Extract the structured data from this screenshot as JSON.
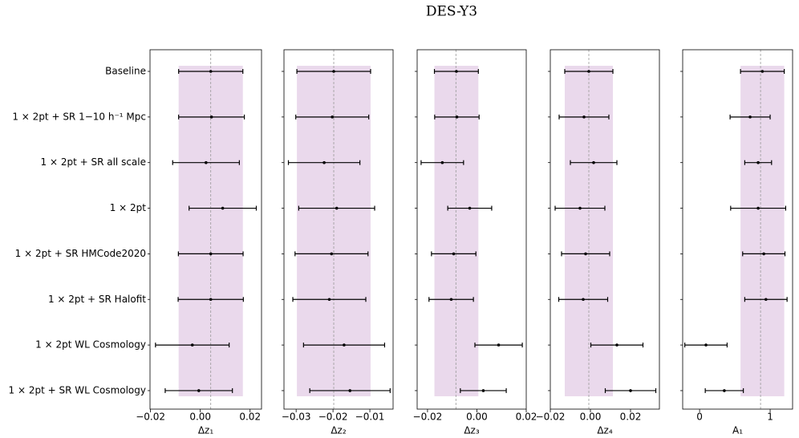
{
  "title": "DES-Y3",
  "chart_data": [
    {
      "type": "errorbar",
      "xlabel": "Δz₁",
      "categories": [
        "Baseline",
        "1 × 2pt + SR 1−10 h⁻¹ Mpc",
        "1 × 2pt + SR all scale",
        "1 × 2pt",
        "1 × 2pt + SR HMCode2020",
        "1 × 2pt + SR Halofit",
        "1 × 2pt WL Cosmology",
        "1 × 2pt + SR WL Cosmology"
      ],
      "values": [
        0.0042,
        0.0045,
        0.0023,
        0.009,
        0.0042,
        0.0042,
        -0.0032,
        -0.0006
      ],
      "errors": [
        0.0129,
        0.0132,
        0.0134,
        0.0135,
        0.013,
        0.0131,
        0.0148,
        0.0135
      ],
      "reference": 0.0042,
      "band": [
        -0.0087,
        0.0171
      ],
      "band_color": "#ead9ec",
      "color": "#000000",
      "xlim": [
        -0.0202,
        0.0246
      ],
      "xticks": [
        {
          "value": -0.02,
          "label": "−0.02"
        },
        {
          "value": 0,
          "label": "0.00"
        },
        {
          "value": 0.02,
          "label": "0.02"
        }
      ]
    },
    {
      "type": "errorbar",
      "xlabel": "Δz₂",
      "values": [
        -0.0198,
        -0.0202,
        -0.0224,
        -0.019,
        -0.0204,
        -0.021,
        -0.017,
        -0.0154
      ],
      "errors": [
        0.01,
        0.0099,
        0.0097,
        0.0103,
        0.0099,
        0.0099,
        0.011,
        0.0109
      ],
      "reference": -0.0198,
      "band": [
        -0.0298,
        -0.0098
      ],
      "band_color": "#ead9ec",
      "color": "#000000",
      "xlim": [
        -0.0333,
        -0.0037
      ],
      "xticks": [
        {
          "value": -0.03,
          "label": "−0.03"
        },
        {
          "value": -0.02,
          "label": "−0.02"
        },
        {
          "value": -0.01,
          "label": "−0.01"
        }
      ]
    },
    {
      "type": "errorbar",
      "xlabel": "Δz₃",
      "values": [
        -0.0083,
        -0.0081,
        -0.014,
        -0.0029,
        -0.0094,
        -0.0104,
        0.0088,
        0.0026
      ],
      "errors": [
        0.0089,
        0.009,
        0.0086,
        0.0089,
        0.009,
        0.009,
        0.0096,
        0.0093
      ],
      "reference": -0.0085,
      "band": [
        -0.0172,
        0.0006
      ],
      "band_color": "#ead9ec",
      "color": "#000000",
      "xlim": [
        -0.0242,
        0.02
      ],
      "xticks": [
        {
          "value": -0.02,
          "label": "−0.02"
        },
        {
          "value": 0,
          "label": "0.00"
        },
        {
          "value": 0.02,
          "label": "0.02"
        }
      ]
    },
    {
      "type": "errorbar",
      "xlabel": "Δz₄",
      "values": [
        -0.0008,
        -0.0032,
        0.0016,
        -0.0052,
        -0.0024,
        -0.0036,
        0.0132,
        0.02
      ],
      "errors": [
        0.012,
        0.0124,
        0.0116,
        0.0124,
        0.012,
        0.0122,
        0.013,
        0.0126
      ],
      "reference": -0.0008,
      "band": [
        -0.0128,
        0.0112
      ],
      "band_color": "#ead9ec",
      "color": "#000000",
      "xlim": [
        -0.02,
        0.0344
      ],
      "xticks": [
        {
          "value": -0.02,
          "label": "−0.02"
        },
        {
          "value": 0,
          "label": "0.00"
        },
        {
          "value": 0.02,
          "label": "0.02"
        }
      ]
    },
    {
      "type": "errorbar",
      "xlabel": "A₁",
      "values": [
        0.89,
        0.716,
        0.83,
        0.83,
        0.91,
        0.94,
        0.09,
        0.35
      ],
      "errors": [
        0.31,
        0.284,
        0.19,
        0.39,
        0.3,
        0.3,
        0.3,
        0.27
      ],
      "reference": 0.864,
      "band": [
        0.58,
        1.2
      ],
      "band_color": "#ead9ec",
      "color": "#000000",
      "xlim": [
        -0.24,
        1.318
      ],
      "xticks": [
        0,
        1
      ]
    }
  ]
}
